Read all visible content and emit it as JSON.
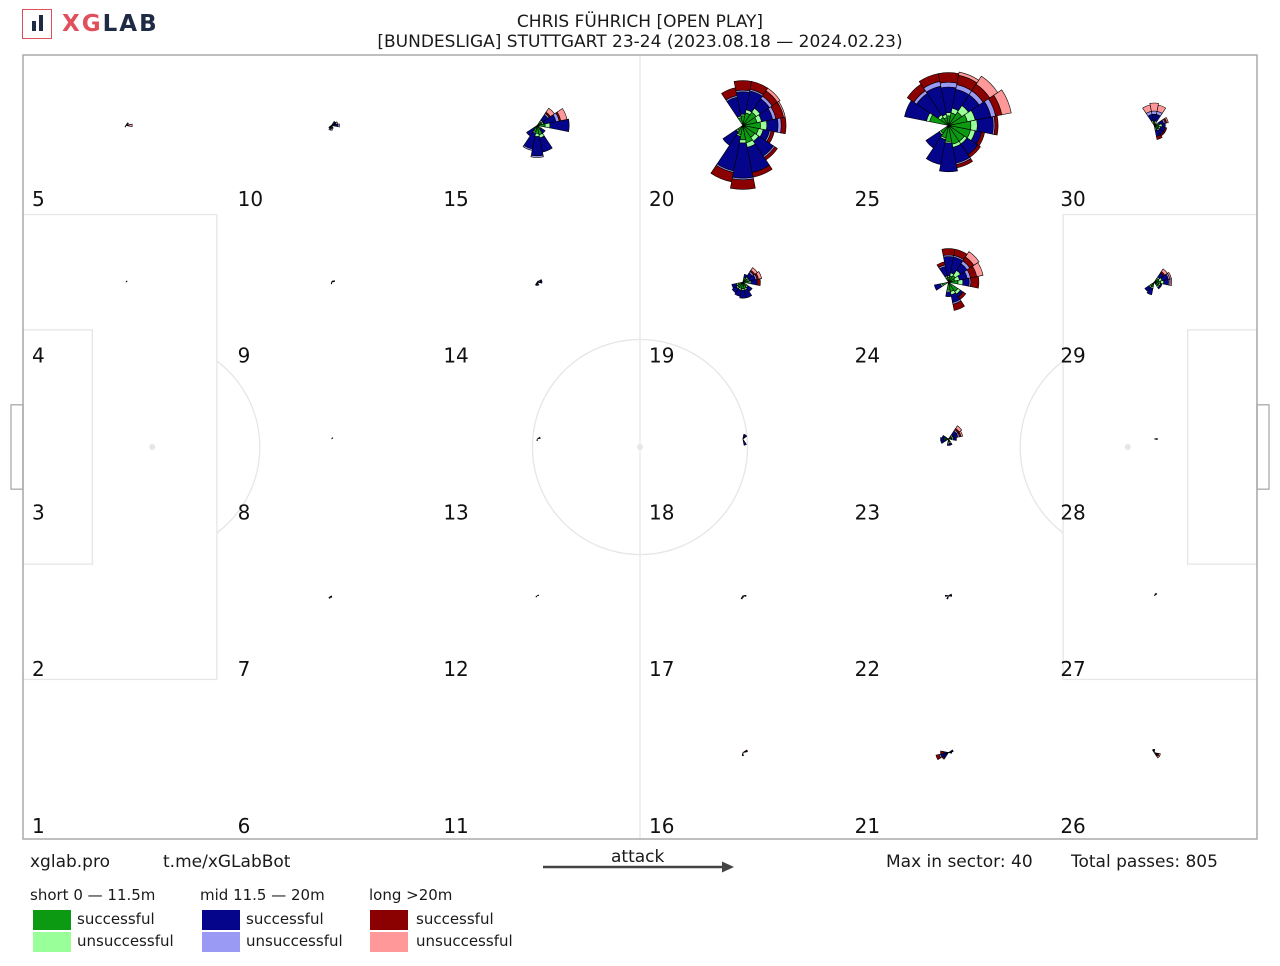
{
  "brand": {
    "x": "XG",
    "lab": "LAB"
  },
  "title": {
    "line1": "CHRIS FÜHRICH [OPEN PLAY]",
    "line2": "[BUNDESLIGA] STUTTGART 23-24 (2023.08.18 — 2024.02.23)"
  },
  "footer": {
    "site": "xglab.pro",
    "bot": "t.me/xGLabBot",
    "attack_label": "attack",
    "max_label": "Max in sector: 40",
    "total_label": "Total passes: 805"
  },
  "legend": {
    "groups": [
      {
        "title": "short 0 — 11.5m",
        "successful": "successful",
        "unsuccessful": "unsuccessful",
        "succ_color": "#0c9a12",
        "unsucc_color": "#99ff99"
      },
      {
        "title": "mid 11.5 — 20m",
        "successful": "successful",
        "unsuccessful": "unsuccessful",
        "succ_color": "#05058c",
        "unsucc_color": "#9a9af5"
      },
      {
        "title": "long >20m",
        "successful": "successful",
        "unsuccessful": "unsuccessful",
        "succ_color": "#8b0000",
        "unsucc_color": "#ff9999"
      }
    ]
  },
  "chart_data": {
    "type": "pitch-zone-pass-rose",
    "max_in_sector": 40,
    "total_passes": 805,
    "zone_numbers": [
      "1",
      "2",
      "3",
      "4",
      "5",
      "6",
      "7",
      "8",
      "9",
      "10",
      "11",
      "12",
      "13",
      "14",
      "15",
      "16",
      "17",
      "18",
      "19",
      "20",
      "21",
      "22",
      "23",
      "24",
      "25",
      "26",
      "27",
      "28",
      "29",
      "30"
    ],
    "zones": [
      {
        "zone": 1,
        "rose": []
      },
      {
        "zone": 2,
        "rose": []
      },
      {
        "zone": 3,
        "rose": []
      },
      {
        "zone": 4,
        "rose": [
          [
            2,
            0,
            0,
            1,
            0,
            0,
            0
          ]
        ]
      },
      {
        "zone": 5,
        "rose": [
          [
            0,
            1,
            0,
            0,
            1,
            0,
            2
          ],
          [
            2,
            0,
            0,
            1,
            0,
            1,
            0
          ],
          [
            11,
            0,
            0,
            0,
            0,
            0,
            1
          ]
        ]
      },
      {
        "zone": 6,
        "rose": []
      },
      {
        "zone": 7,
        "rose": [
          [
            10,
            1,
            0,
            1,
            0,
            0,
            0
          ],
          [
            12,
            0,
            0,
            1,
            0,
            0,
            0
          ]
        ]
      },
      {
        "zone": 8,
        "rose": [
          [
            2,
            0,
            0,
            1,
            0,
            0,
            0
          ]
        ]
      },
      {
        "zone": 9,
        "rose": [
          [
            1,
            0,
            0,
            1,
            0,
            1,
            0
          ],
          [
            2,
            1,
            0,
            0,
            0,
            0,
            0
          ],
          [
            12,
            0,
            0,
            1,
            0,
            0,
            0
          ]
        ]
      },
      {
        "zone": 10,
        "rose": [
          [
            0,
            1,
            1,
            2,
            1,
            0,
            0
          ],
          [
            1,
            1,
            0,
            2,
            0,
            0,
            1
          ],
          [
            2,
            2,
            0,
            1,
            0,
            0,
            0
          ],
          [
            10,
            1,
            0,
            1,
            0,
            0,
            0
          ],
          [
            11,
            1,
            0,
            1,
            1,
            0,
            0
          ],
          [
            12,
            1,
            1,
            0,
            1,
            0,
            0
          ],
          [
            13,
            0,
            1,
            1,
            0,
            0,
            0
          ]
        ]
      },
      {
        "zone": 11,
        "rose": []
      },
      {
        "zone": 12,
        "rose": [
          [
            1,
            0,
            0,
            1,
            0,
            0,
            0
          ],
          [
            10,
            0,
            0,
            1,
            0,
            0,
            0
          ]
        ]
      },
      {
        "zone": 13,
        "rose": [
          [
            1,
            1,
            0,
            1,
            0,
            0,
            0
          ],
          [
            12,
            0,
            0,
            1,
            0,
            0,
            0
          ]
        ]
      },
      {
        "zone": 14,
        "rose": [
          [
            0,
            1,
            0,
            2,
            0,
            0,
            0
          ],
          [
            1,
            1,
            1,
            1,
            0,
            0,
            0
          ],
          [
            2,
            0,
            0,
            1,
            0,
            0,
            0
          ],
          [
            11,
            1,
            0,
            1,
            0,
            0,
            0
          ],
          [
            12,
            1,
            1,
            0,
            0,
            0,
            0
          ],
          [
            13,
            1,
            0,
            1,
            0,
            0,
            0
          ]
        ]
      },
      {
        "zone": 15,
        "rose": [
          [
            0,
            5,
            3,
            12,
            0,
            0,
            0
          ],
          [
            1,
            3,
            1,
            8,
            2,
            1,
            4
          ],
          [
            2,
            3,
            1,
            4,
            1,
            1,
            3
          ],
          [
            10,
            2,
            0,
            6,
            0,
            0,
            0
          ],
          [
            11,
            4,
            1,
            10,
            1,
            0,
            0
          ],
          [
            12,
            5,
            2,
            12,
            1,
            0,
            0
          ],
          [
            13,
            6,
            2,
            9,
            0,
            0,
            0
          ],
          [
            14,
            3,
            0,
            3,
            0,
            0,
            0
          ]
        ]
      },
      {
        "zone": 16,
        "rose": [
          [
            1,
            1,
            0,
            1,
            0,
            1,
            0
          ],
          [
            12,
            1,
            0,
            1,
            0,
            0,
            0
          ]
        ]
      },
      {
        "zone": 17,
        "rose": [
          [
            0,
            1,
            0,
            1,
            0,
            0,
            0
          ],
          [
            11,
            1,
            0,
            1,
            0,
            0,
            0
          ],
          [
            13,
            0,
            0,
            1,
            0,
            0,
            0
          ]
        ]
      },
      {
        "zone": 18,
        "rose": [
          [
            2,
            1,
            0,
            2,
            0,
            0,
            0
          ],
          [
            3,
            1,
            0,
            2,
            0,
            0,
            0
          ],
          [
            13,
            1,
            0,
            3,
            0,
            0,
            0
          ]
        ]
      },
      {
        "zone": 19,
        "rose": [
          [
            0,
            4,
            1,
            4,
            0,
            2,
            0
          ],
          [
            1,
            3,
            1,
            4,
            1,
            1,
            2
          ],
          [
            2,
            3,
            1,
            3,
            1,
            1,
            2
          ],
          [
            3,
            3,
            0,
            2,
            0,
            0,
            0
          ],
          [
            9,
            3,
            1,
            3,
            0,
            0,
            0
          ],
          [
            10,
            4,
            1,
            3,
            0,
            0,
            0
          ],
          [
            11,
            4,
            1,
            4,
            0,
            0,
            0
          ],
          [
            12,
            4,
            1,
            5,
            0,
            0,
            0
          ],
          [
            13,
            4,
            1,
            5,
            0,
            0,
            0
          ],
          [
            14,
            3,
            1,
            3,
            0,
            0,
            0
          ]
        ]
      },
      {
        "zone": 20,
        "rose": [
          [
            0,
            11,
            4,
            7,
            2,
            3,
            0
          ],
          [
            1,
            9,
            3,
            7,
            2,
            5,
            1
          ],
          [
            2,
            10,
            3,
            7,
            2,
            4,
            2
          ],
          [
            3,
            8,
            2,
            12,
            1,
            5,
            0
          ],
          [
            4,
            6,
            1,
            14,
            1,
            6,
            0
          ],
          [
            5,
            5,
            1,
            12,
            1,
            5,
            0
          ],
          [
            10,
            4,
            1,
            10,
            0,
            0,
            0
          ],
          [
            11,
            6,
            1,
            22,
            1,
            6,
            0
          ],
          [
            12,
            9,
            2,
            22,
            1,
            6,
            0
          ],
          [
            13,
            11,
            3,
            16,
            0,
            3,
            0
          ],
          [
            14,
            9,
            3,
            11,
            1,
            2,
            0
          ],
          [
            15,
            10,
            3,
            4,
            1,
            2,
            0
          ]
        ]
      },
      {
        "zone": 21,
        "rose": [
          [
            0,
            1,
            0,
            1,
            0,
            0,
            0
          ],
          [
            1,
            2,
            0,
            1,
            0,
            0,
            0
          ],
          [
            8,
            1,
            0,
            2,
            0,
            2,
            0
          ],
          [
            9,
            1,
            0,
            4,
            1,
            2,
            0
          ],
          [
            10,
            1,
            0,
            3,
            0,
            1,
            0
          ]
        ]
      },
      {
        "zone": 22,
        "rose": [
          [
            0,
            1,
            0,
            1,
            0,
            0,
            0
          ],
          [
            1,
            1,
            0,
            1,
            0,
            0,
            0
          ],
          [
            8,
            1,
            0,
            1,
            0,
            0,
            0
          ],
          [
            11,
            1,
            0,
            1,
            0,
            0,
            0
          ]
        ]
      },
      {
        "zone": 23,
        "rose": [
          [
            0,
            2,
            1,
            2,
            0,
            0,
            0
          ],
          [
            1,
            2,
            1,
            3,
            1,
            1,
            1
          ],
          [
            2,
            2,
            1,
            3,
            1,
            1,
            2
          ],
          [
            7,
            2,
            0,
            2,
            0,
            0,
            0
          ],
          [
            8,
            3,
            0,
            2,
            0,
            0,
            0
          ],
          [
            9,
            2,
            0,
            3,
            0,
            0,
            0
          ],
          [
            12,
            2,
            1,
            1,
            0,
            0,
            0
          ],
          [
            13,
            2,
            1,
            1,
            0,
            0,
            0
          ]
        ]
      },
      {
        "zone": 24,
        "rose": [
          [
            0,
            6,
            3,
            4,
            1,
            5,
            0
          ],
          [
            1,
            4,
            3,
            5,
            2,
            4,
            4
          ],
          [
            2,
            5,
            4,
            5,
            2,
            3,
            4
          ],
          [
            3,
            4,
            2,
            10,
            1,
            4,
            0
          ],
          [
            4,
            3,
            1,
            12,
            1,
            4,
            0
          ],
          [
            5,
            3,
            1,
            6,
            1,
            2,
            0
          ],
          [
            9,
            4,
            1,
            4,
            0,
            0,
            0
          ],
          [
            12,
            5,
            1,
            3,
            0,
            0,
            0
          ],
          [
            13,
            6,
            2,
            5,
            1,
            4,
            0
          ],
          [
            14,
            7,
            2,
            2,
            0,
            2,
            0
          ]
        ]
      },
      {
        "zone": 25,
        "rose": [
          [
            0,
            14,
            4,
            10,
            1,
            2,
            0
          ],
          [
            1,
            12,
            5,
            10,
            3,
            4,
            6
          ],
          [
            2,
            10,
            5,
            8,
            3,
            5,
            6
          ],
          [
            3,
            8,
            3,
            12,
            3,
            6,
            2
          ],
          [
            4,
            6,
            2,
            16,
            3,
            6,
            0
          ],
          [
            5,
            5,
            2,
            18,
            3,
            5,
            0
          ],
          [
            6,
            6,
            2,
            16,
            2,
            5,
            0
          ],
          [
            7,
            12,
            2,
            14,
            0,
            0,
            0
          ],
          [
            10,
            6,
            1,
            10,
            0,
            0,
            0
          ],
          [
            11,
            8,
            1,
            16,
            0,
            0,
            0
          ],
          [
            12,
            10,
            1,
            18,
            0,
            0,
            0
          ],
          [
            13,
            12,
            2,
            10,
            1,
            2,
            0
          ],
          [
            14,
            12,
            2,
            8,
            0,
            2,
            0
          ],
          [
            15,
            14,
            3,
            4,
            0,
            2,
            0
          ]
        ]
      },
      {
        "zone": 26,
        "rose": [
          [
            14,
            1,
            0,
            1,
            0,
            1,
            1
          ],
          [
            15,
            1,
            0,
            1,
            0,
            1,
            1
          ],
          [
            4,
            1,
            0,
            1,
            0,
            0,
            0
          ],
          [
            5,
            1,
            0,
            1,
            0,
            0,
            0
          ]
        ]
      },
      {
        "zone": 27,
        "rose": [
          [
            2,
            1,
            0,
            1,
            0,
            0,
            0
          ]
        ]
      },
      {
        "zone": 28,
        "rose": [
          [
            0,
            1,
            0,
            1,
            0,
            0,
            0
          ]
        ]
      },
      {
        "zone": 29,
        "rose": [
          [
            0,
            4,
            2,
            3,
            1,
            0,
            1
          ],
          [
            1,
            3,
            2,
            4,
            1,
            0,
            1
          ],
          [
            2,
            3,
            1,
            3,
            0,
            1,
            2
          ],
          [
            10,
            3,
            1,
            3,
            0,
            0,
            0
          ],
          [
            11,
            3,
            1,
            4,
            0,
            0,
            0
          ],
          [
            14,
            3,
            1,
            1,
            0,
            0,
            0
          ],
          [
            15,
            3,
            1,
            1,
            0,
            0,
            0
          ]
        ]
      },
      {
        "zone": 30,
        "rose": [
          [
            0,
            3,
            2,
            2,
            0,
            0,
            0
          ],
          [
            1,
            2,
            1,
            3,
            1,
            1,
            1
          ],
          [
            3,
            1,
            2,
            4,
            2,
            0,
            4
          ],
          [
            4,
            1,
            1,
            5,
            2,
            0,
            5
          ],
          [
            5,
            1,
            2,
            4,
            2,
            0,
            4
          ],
          [
            13,
            2,
            1,
            4,
            0,
            2,
            0
          ],
          [
            14,
            3,
            1,
            3,
            0,
            1,
            0
          ],
          [
            15,
            3,
            1,
            3,
            0,
            1,
            0
          ]
        ]
      }
    ]
  }
}
